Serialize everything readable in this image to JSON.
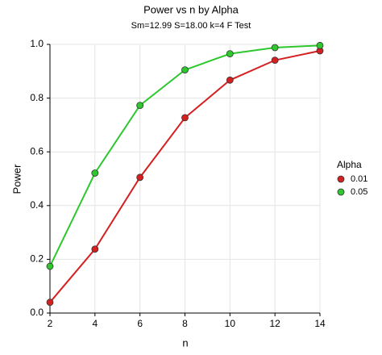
{
  "chart_data": {
    "type": "line",
    "title": "Power vs n by Alpha",
    "subtitle": "Sm=12.99 S=18.00 k=4 F Test",
    "x_label": "n",
    "y_label": "Power",
    "legend_title": "Alpha",
    "legend_position": "right",
    "grid": true,
    "x": [
      2,
      4,
      6,
      8,
      10,
      12,
      14
    ],
    "series": [
      {
        "name": "0.01",
        "color": "#d42020",
        "values": [
          0.04,
          0.238,
          0.505,
          0.727,
          0.867,
          0.941,
          0.976
        ]
      },
      {
        "name": "0.05",
        "color": "#2ec82e",
        "values": [
          0.174,
          0.521,
          0.773,
          0.905,
          0.965,
          0.988,
          0.996
        ]
      }
    ],
    "xlim": [
      2,
      14
    ],
    "xticks": [
      2,
      4,
      6,
      8,
      10,
      12,
      14
    ],
    "ylim": [
      0,
      1
    ],
    "yticks": [
      {
        "value": 0,
        "label": "0.0"
      },
      0.2,
      0.4,
      0.6,
      0.8,
      {
        "value": 1,
        "label": "1.0"
      }
    ]
  }
}
